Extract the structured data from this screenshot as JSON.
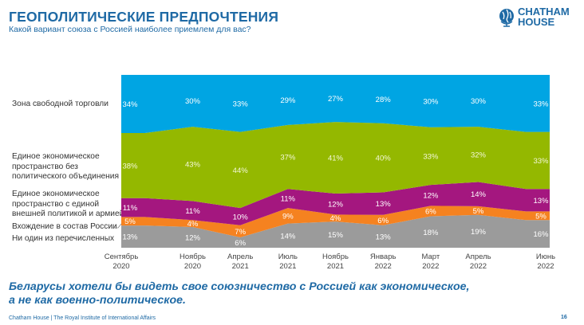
{
  "header": {
    "title": "ГЕОПОЛИТИЧЕСКИЕ ПРЕДПОЧТЕНИЯ",
    "subtitle": "Какой вариант союза с Россией наиболее приемлем для вас?",
    "logo_line1": "CHATHAM",
    "logo_line2": "HOUSE"
  },
  "chart_data": {
    "type": "area",
    "stacked": true,
    "normalized": true,
    "title": "ГЕОПОЛИТИЧЕСКИЕ ПРЕДПОЧТЕНИЯ",
    "subtitle": "Какой вариант союза с Россией наиболее приемлем для вас?",
    "xlabel": "",
    "ylabel": "",
    "ylim": [
      0,
      100
    ],
    "grid": false,
    "legend_position": "left",
    "categories": [
      [
        "Сентябрь",
        "2020"
      ],
      [
        "Ноябрь",
        "2020"
      ],
      [
        "Апрель",
        "2021"
      ],
      [
        "Июль",
        "2021"
      ],
      [
        "Ноябрь",
        "2021"
      ],
      [
        "Январь",
        "2022"
      ],
      [
        "Март",
        "2022"
      ],
      [
        "Апрель",
        "2022"
      ],
      [
        "Июнь",
        "2022"
      ]
    ],
    "series": [
      {
        "name": "Ни один из перечисленных",
        "color": "#9b9b9b",
        "values": [
          13,
          12,
          6,
          14,
          15,
          13,
          18,
          19,
          16
        ],
        "legend": [
          "Ни один из перечисленных"
        ]
      },
      {
        "name": "Вхождение в состав России",
        "color": "#f58220",
        "values": [
          5,
          4,
          7,
          9,
          4,
          6,
          6,
          5,
          5
        ],
        "legend": [
          "Вхождение в состав России"
        ]
      },
      {
        "name": "Единое экономическое пространство с единой внешней политикой и армией",
        "color": "#a4177f",
        "values": [
          11,
          11,
          10,
          11,
          12,
          13,
          12,
          14,
          13
        ],
        "legend": [
          "Единое экономическое",
          "пространство с единой",
          "внешней политикой и армией"
        ]
      },
      {
        "name": "Единое экономическое пространство без политического объединения",
        "color": "#94b800",
        "values": [
          38,
          43,
          44,
          37,
          41,
          40,
          33,
          32,
          33
        ],
        "legend": [
          "Единое экономическое",
          "пространство без",
          "политического объединения"
        ]
      },
      {
        "name": "Зона свободной торговли",
        "color": "#00a5e3",
        "values": [
          34,
          30,
          33,
          29,
          27,
          28,
          30,
          30,
          33
        ],
        "legend": [
          "Зона свободной торговли"
        ]
      }
    ],
    "value_suffix": "%"
  },
  "takeaway": {
    "line1": "Беларусы хотели бы видеть свое союзничество с Россией как экономическое,",
    "line2": "а не как военно-политическое."
  },
  "footer": {
    "text": "Chatham House  |  The Royal Institute of International Affairs",
    "page": "16"
  }
}
